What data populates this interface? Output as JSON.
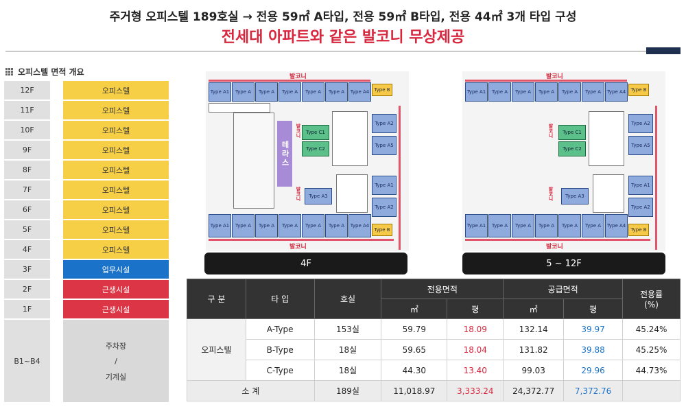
{
  "header": {
    "subtitle": "주거형 오피스텔 189호실 → 전용 59㎡ A타입, 전용 59㎡ B타입, 전용 44㎡ 3개 타입 구성",
    "title": "전세대 아파트와 같은 발코니 무상제공"
  },
  "section_title": "오피스텔 면적 개요",
  "floors": [
    {
      "floor": "12F",
      "use": "오피스텔",
      "color": "#f7cf47"
    },
    {
      "floor": "11F",
      "use": "오피스텔",
      "color": "#f7cf47"
    },
    {
      "floor": "10F",
      "use": "오피스텔",
      "color": "#f7cf47"
    },
    {
      "floor": "9F",
      "use": "오피스텔",
      "color": "#f7cf47"
    },
    {
      "floor": "8F",
      "use": "오피스텔",
      "color": "#f7cf47"
    },
    {
      "floor": "7F",
      "use": "오피스텔",
      "color": "#f7cf47"
    },
    {
      "floor": "6F",
      "use": "오피스텔",
      "color": "#f7cf47"
    },
    {
      "floor": "5F",
      "use": "오피스텔",
      "color": "#f7cf47"
    },
    {
      "floor": "4F",
      "use": "오피스텔",
      "color": "#f7cf47"
    },
    {
      "floor": "3F",
      "use": "업무시설",
      "color": "#1a73c8"
    },
    {
      "floor": "2F",
      "use": "근생시설",
      "color": "#dc3545"
    },
    {
      "floor": "1F",
      "use": "근생시설",
      "color": "#dc3545"
    },
    {
      "floor": "B1~B4",
      "use_lines": [
        "주차장",
        "/",
        "기계실"
      ],
      "color": "#d9d9d9"
    }
  ],
  "plans": {
    "left": {
      "label": "4F",
      "balcony": "발코니",
      "side_balcony": "발코니",
      "terrace": "테라스",
      "top_row": [
        "Type A1",
        "Type A",
        "Type A",
        "Type A",
        "Type A",
        "Type A",
        "Type A4"
      ],
      "bottom_row": [
        "Type A1",
        "Type A",
        "Type A",
        "Type A",
        "Type A",
        "Type A",
        "Type A4"
      ],
      "type_b": "Type B",
      "right_units": [
        "Type A2",
        "Type A5",
        "Type A1",
        "Type A2"
      ],
      "green_units": [
        "Type C1",
        "Type C2"
      ],
      "mid_unit": "Type A3"
    },
    "right": {
      "label": "5 ~ 12F",
      "balcony": "발코니",
      "side_balcony": "발코니",
      "top_row": [
        "Type A1",
        "Type A",
        "Type A",
        "Type A",
        "Type A",
        "Type A",
        "Type A4"
      ],
      "bottom_row": [
        "Type A1",
        "Type A",
        "Type A",
        "Type A",
        "Type A",
        "Type A",
        "Type A4"
      ],
      "type_b": "Type B",
      "right_units": [
        "Type A2",
        "Type A5",
        "Type A1",
        "Type A2"
      ],
      "green_units": [
        "Type C1",
        "Type C2"
      ],
      "mid_unit": "Type A3"
    }
  },
  "table": {
    "headers": {
      "category": "구 분",
      "type": "타 입",
      "rooms": "호실",
      "exclusive": "전용면적",
      "supply": "공급면적",
      "ratio": "전용률",
      "ratio_unit": "(%)",
      "sqm": "㎡",
      "pyeong": "평"
    },
    "category": "오피스텔",
    "rows": [
      {
        "type": "A-Type",
        "rooms": "153실",
        "ex_sqm": "59.79",
        "ex_py": "18.09",
        "sup_sqm": "132.14",
        "sup_py": "39.97",
        "ratio": "45.24%"
      },
      {
        "type": "B-Type",
        "rooms": "18실",
        "ex_sqm": "59.65",
        "ex_py": "18.04",
        "sup_sqm": "131.82",
        "sup_py": "39.88",
        "ratio": "45.25%"
      },
      {
        "type": "C-Type",
        "rooms": "18실",
        "ex_sqm": "44.30",
        "ex_py": "13.40",
        "sup_sqm": "99.03",
        "sup_py": "29.96",
        "ratio": "44.73%"
      }
    ],
    "total": {
      "label": "소 계",
      "rooms": "189실",
      "ex_sqm": "11,018.97",
      "ex_py": "3,333.24",
      "sup_sqm": "24,372.77",
      "sup_py": "7,372.76",
      "ratio": ""
    }
  }
}
